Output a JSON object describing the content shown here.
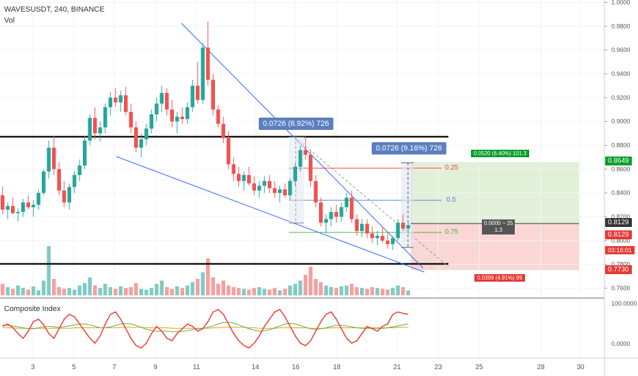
{
  "chart_data": {
    "type": "candlestick",
    "symbol_title": "WAVESUSDT, 240, BINANCE",
    "volume_label": "Vol",
    "indicator_label": "Composite Index",
    "x_ticks": [
      "3",
      "5",
      "7",
      "9",
      "11",
      "14",
      "16",
      "18",
      "21",
      "23",
      "25",
      "28",
      "30"
    ],
    "y_ticks": [
      "1.0000",
      "0.9800",
      "0.9600",
      "0.9400",
      "0.9200",
      "0.9000",
      "0.8800",
      "0.8600",
      "0.8400",
      "0.8200",
      "0.8000",
      "0.7800",
      "0.7600"
    ],
    "indicator_ticks": [
      "100.0000",
      "0.0000"
    ],
    "ylim": [
      0.754,
      1.002
    ],
    "price_tags": {
      "target": "0.8649",
      "current_1": "0.8129",
      "current_2": "0.8129",
      "countdown": "03:16:01",
      "stop": "0.7730"
    },
    "annotations": {
      "measure_1": "0.0726 (8.92%) 726",
      "measure_2": "0.0726 (9.16%) 726",
      "fib_025": "0.25",
      "fib_05": "0.5",
      "fib_075": "0.75",
      "profit_box": "0.0520 (6.40%) 101.3",
      "loss_box": "0.0399 (4.91%) 99",
      "rr_line1": "0.0000 ~ 25",
      "rr_line2": "1.3"
    },
    "candles_note": "approximate OHLC series read from chart",
    "candles": [
      [
        0.838,
        0.845,
        0.822,
        0.826
      ],
      [
        0.826,
        0.832,
        0.818,
        0.829
      ],
      [
        0.829,
        0.836,
        0.822,
        0.823
      ],
      [
        0.823,
        0.827,
        0.816,
        0.824
      ],
      [
        0.824,
        0.835,
        0.82,
        0.832
      ],
      [
        0.832,
        0.838,
        0.826,
        0.828
      ],
      [
        0.828,
        0.834,
        0.82,
        0.83
      ],
      [
        0.83,
        0.843,
        0.826,
        0.84
      ],
      [
        0.84,
        0.86,
        0.838,
        0.858
      ],
      [
        0.858,
        0.884,
        0.852,
        0.878
      ],
      [
        0.878,
        0.888,
        0.855,
        0.86
      ],
      [
        0.86,
        0.866,
        0.838,
        0.842
      ],
      [
        0.842,
        0.85,
        0.828,
        0.832
      ],
      [
        0.832,
        0.848,
        0.826,
        0.845
      ],
      [
        0.845,
        0.858,
        0.84,
        0.855
      ],
      [
        0.855,
        0.868,
        0.85,
        0.863
      ],
      [
        0.863,
        0.888,
        0.86,
        0.884
      ],
      [
        0.884,
        0.906,
        0.88,
        0.903
      ],
      [
        0.903,
        0.912,
        0.885,
        0.89
      ],
      [
        0.89,
        0.9,
        0.883,
        0.895
      ],
      [
        0.895,
        0.915,
        0.89,
        0.912
      ],
      [
        0.912,
        0.925,
        0.905,
        0.92
      ],
      [
        0.92,
        0.928,
        0.912,
        0.916
      ],
      [
        0.916,
        0.926,
        0.908,
        0.922
      ],
      [
        0.922,
        0.929,
        0.905,
        0.908
      ],
      [
        0.908,
        0.915,
        0.89,
        0.895
      ],
      [
        0.895,
        0.9,
        0.874,
        0.878
      ],
      [
        0.878,
        0.89,
        0.87,
        0.885
      ],
      [
        0.885,
        0.898,
        0.88,
        0.894
      ],
      [
        0.894,
        0.91,
        0.89,
        0.906
      ],
      [
        0.906,
        0.92,
        0.9,
        0.915
      ],
      [
        0.915,
        0.93,
        0.908,
        0.924
      ],
      [
        0.924,
        0.928,
        0.905,
        0.91
      ],
      [
        0.91,
        0.918,
        0.895,
        0.9
      ],
      [
        0.9,
        0.908,
        0.89,
        0.904
      ],
      [
        0.904,
        0.912,
        0.898,
        0.902
      ],
      [
        0.902,
        0.916,
        0.898,
        0.912
      ],
      [
        0.912,
        0.935,
        0.908,
        0.93
      ],
      [
        0.93,
        0.95,
        0.915,
        0.918
      ],
      [
        0.918,
        0.966,
        0.915,
        0.962
      ],
      [
        0.962,
        0.984,
        0.93,
        0.935
      ],
      [
        0.935,
        0.94,
        0.905,
        0.91
      ],
      [
        0.91,
        0.914,
        0.895,
        0.898
      ],
      [
        0.898,
        0.904,
        0.882,
        0.886
      ],
      [
        0.886,
        0.892,
        0.86,
        0.864
      ],
      [
        0.864,
        0.87,
        0.85,
        0.856
      ],
      [
        0.856,
        0.862,
        0.845,
        0.85
      ],
      [
        0.85,
        0.858,
        0.842,
        0.855
      ],
      [
        0.855,
        0.862,
        0.846,
        0.848
      ],
      [
        0.848,
        0.854,
        0.838,
        0.842
      ],
      [
        0.842,
        0.85,
        0.836,
        0.846
      ],
      [
        0.846,
        0.854,
        0.84,
        0.85
      ],
      [
        0.85,
        0.855,
        0.84,
        0.844
      ],
      [
        0.844,
        0.85,
        0.836,
        0.84
      ],
      [
        0.84,
        0.846,
        0.832,
        0.843
      ],
      [
        0.843,
        0.848,
        0.836,
        0.838
      ],
      [
        0.838,
        0.852,
        0.834,
        0.85
      ],
      [
        0.85,
        0.865,
        0.846,
        0.862
      ],
      [
        0.862,
        0.88,
        0.858,
        0.876
      ],
      [
        0.876,
        0.888,
        0.868,
        0.872
      ],
      [
        0.872,
        0.876,
        0.845,
        0.85
      ],
      [
        0.85,
        0.855,
        0.828,
        0.832
      ],
      [
        0.832,
        0.836,
        0.812,
        0.815
      ],
      [
        0.815,
        0.822,
        0.806,
        0.818
      ],
      [
        0.818,
        0.828,
        0.812,
        0.824
      ],
      [
        0.824,
        0.83,
        0.815,
        0.82
      ],
      [
        0.82,
        0.832,
        0.816,
        0.828
      ],
      [
        0.828,
        0.84,
        0.824,
        0.836
      ],
      [
        0.836,
        0.842,
        0.815,
        0.818
      ],
      [
        0.818,
        0.822,
        0.804,
        0.808
      ],
      [
        0.808,
        0.818,
        0.803,
        0.814
      ],
      [
        0.814,
        0.818,
        0.802,
        0.806
      ],
      [
        0.806,
        0.812,
        0.798,
        0.802
      ],
      [
        0.802,
        0.808,
        0.796,
        0.804
      ],
      [
        0.804,
        0.812,
        0.798,
        0.8
      ],
      [
        0.8,
        0.806,
        0.793,
        0.797
      ],
      [
        0.797,
        0.804,
        0.792,
        0.802
      ],
      [
        0.802,
        0.818,
        0.8,
        0.815
      ],
      [
        0.815,
        0.822,
        0.808,
        0.81
      ],
      [
        0.81,
        0.816,
        0.806,
        0.813
      ]
    ],
    "volumes": [
      14,
      10,
      8,
      12,
      9,
      7,
      11,
      6,
      18,
      60,
      20,
      10,
      8,
      9,
      7,
      12,
      15,
      22,
      12,
      9,
      14,
      10,
      8,
      11,
      9,
      10,
      15,
      8,
      7,
      9,
      14,
      18,
      10,
      8,
      11,
      9,
      12,
      16,
      20,
      28,
      45,
      22,
      14,
      18,
      12,
      10,
      9,
      8,
      7,
      9,
      10,
      8,
      7,
      9,
      6,
      8,
      12,
      14,
      18,
      25,
      35,
      20,
      16,
      12,
      10,
      9,
      11,
      12,
      14,
      10,
      9,
      8,
      10,
      9,
      8,
      7,
      9,
      12,
      10,
      6
    ],
    "indicator_red": [
      55,
      60,
      52,
      40,
      30,
      45,
      65,
      70,
      58,
      40,
      30,
      50,
      70,
      80,
      75,
      60,
      45,
      30,
      20,
      35,
      60,
      80,
      85,
      70,
      50,
      30,
      15,
      10,
      20,
      40,
      55,
      45,
      30,
      25,
      40,
      50,
      60,
      55,
      45,
      50,
      65,
      85,
      90,
      80,
      60,
      40,
      25,
      15,
      10,
      20,
      35,
      55,
      70,
      85,
      90,
      75,
      55,
      35,
      20,
      15,
      25,
      45,
      65,
      80,
      85,
      70,
      50,
      30,
      20,
      25,
      40,
      55,
      50,
      45,
      55,
      60,
      80,
      85,
      82,
      80
    ],
    "indicator_green": [
      58,
      57,
      56,
      54,
      52,
      50,
      50,
      52,
      54,
      55,
      54,
      53,
      54,
      56,
      58,
      60,
      60,
      58,
      55,
      52,
      52,
      54,
      57,
      60,
      61,
      60,
      57,
      53,
      49,
      46,
      45,
      45,
      45,
      44,
      44,
      45,
      46,
      48,
      50,
      51,
      53,
      56,
      60,
      63,
      64,
      62,
      58,
      54,
      50,
      47,
      45,
      46,
      48,
      52,
      56,
      60,
      61,
      60,
      57,
      53,
      50,
      49,
      50,
      52,
      55,
      57,
      57,
      56,
      54,
      52,
      51,
      51,
      51,
      51,
      51,
      52,
      54,
      56,
      58,
      60
    ],
    "indicator_orange": [
      52,
      52,
      52,
      51,
      51,
      51,
      51,
      51,
      51,
      51,
      51,
      51,
      51,
      51,
      52,
      52,
      52,
      52,
      52,
      52,
      52,
      52,
      52,
      53,
      53,
      53,
      53,
      53,
      52,
      52,
      52,
      52,
      52,
      51,
      51,
      51,
      51,
      51,
      51,
      51,
      51,
      52,
      52,
      53,
      53,
      53,
      53,
      53,
      52,
      52,
      51,
      51,
      51,
      51,
      52,
      52,
      52,
      52,
      52,
      52,
      51,
      51,
      51,
      51,
      52,
      52,
      52,
      52,
      52,
      52,
      52,
      52,
      52,
      52,
      52,
      52,
      52,
      53,
      53,
      53
    ]
  },
  "colors": {
    "up": "#26a69a",
    "down": "#ef5350",
    "vol_up": "#80cbc4",
    "vol_down": "#f5a09e",
    "wedge": "#2962ff",
    "measure_box": "#5b7fbf",
    "profit": "#e2f0d9",
    "loss": "#fad7d4",
    "target_tag": "#0a9d2c",
    "stop_tag": "#e53935",
    "current_tag": "#333333",
    "ind_red": "#f44336",
    "ind_green": "#4caf50",
    "ind_orange": "#ff9800"
  }
}
